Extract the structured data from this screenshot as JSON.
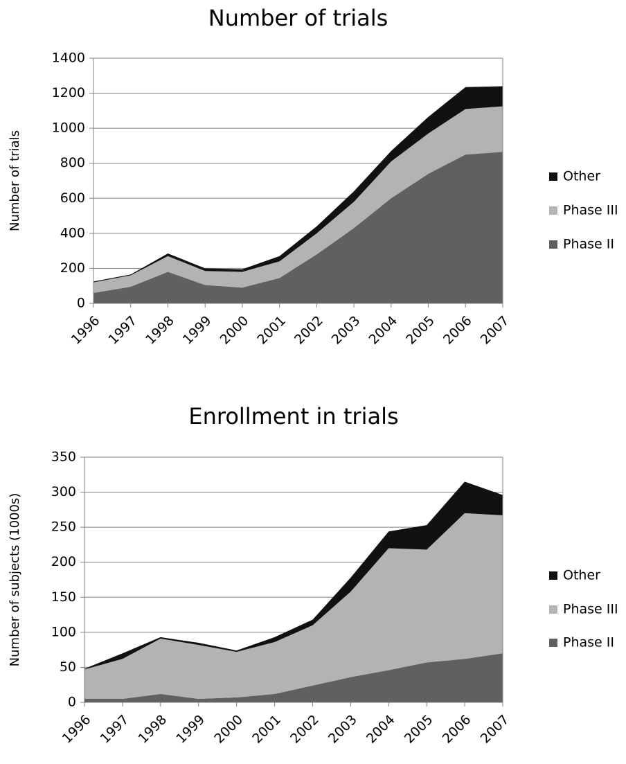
{
  "chart_data": [
    {
      "type": "area",
      "stacked": true,
      "title": "Number of trials",
      "y_label": "Number of trials",
      "categories": [
        "1996",
        "1997",
        "1998",
        "1999",
        "2000",
        "2001",
        "2002",
        "2003",
        "2004",
        "2005",
        "2006",
        "2007"
      ],
      "series": [
        {
          "name": "Phase II",
          "color": "#606060",
          "values": [
            60,
            95,
            180,
            105,
            90,
            145,
            280,
            430,
            600,
            740,
            850,
            865
          ]
        },
        {
          "name": "Phase III",
          "color": "#b3b3b3",
          "values": [
            60,
            65,
            90,
            80,
            90,
            95,
            120,
            150,
            210,
            230,
            260,
            260
          ]
        },
        {
          "name": "Other",
          "color": "#111111",
          "values": [
            5,
            5,
            15,
            15,
            15,
            30,
            40,
            60,
            60,
            95,
            125,
            115
          ]
        }
      ],
      "ylim": [
        0,
        1400
      ],
      "yticks": [
        0,
        200,
        400,
        600,
        800,
        1000,
        1200,
        1400
      ],
      "grid": true,
      "legend": "right"
    },
    {
      "type": "area",
      "stacked": true,
      "title": "Enrollment in trials",
      "y_label": "Number of subjects (1000s)",
      "categories": [
        "1996",
        "1997",
        "1998",
        "1999",
        "2000",
        "2001",
        "2002",
        "2003",
        "2004",
        "2005",
        "2006",
        "2007"
      ],
      "series": [
        {
          "name": "Phase II",
          "color": "#606060",
          "values": [
            5,
            5,
            12,
            5,
            7,
            12,
            24,
            36,
            46,
            57,
            62,
            70
          ]
        },
        {
          "name": "Phase III",
          "color": "#b3b3b3",
          "values": [
            42,
            57,
            79,
            77,
            65,
            74,
            86,
            122,
            174,
            161,
            208,
            197
          ]
        },
        {
          "name": "Other",
          "color": "#111111",
          "values": [
            1,
            8,
            2,
            3,
            2,
            7,
            8,
            20,
            24,
            35,
            45,
            29
          ]
        }
      ],
      "ylim": [
        0,
        350
      ],
      "yticks": [
        0,
        50,
        100,
        150,
        200,
        250,
        300,
        350
      ],
      "grid": true,
      "legend": "right"
    }
  ]
}
